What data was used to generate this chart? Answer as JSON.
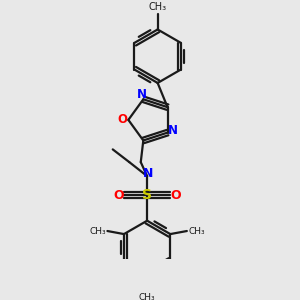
{
  "bg_color": "#e8e8e8",
  "bond_color": "#1a1a1a",
  "N_color": "#0000ff",
  "O_color": "#ff0000",
  "S_color": "#cccc00",
  "lw": 1.6,
  "figsize": [
    3.0,
    3.0
  ],
  "dpi": 100,
  "xlim": [
    0.15,
    0.95
  ],
  "ylim": [
    0.02,
    1.02
  ]
}
